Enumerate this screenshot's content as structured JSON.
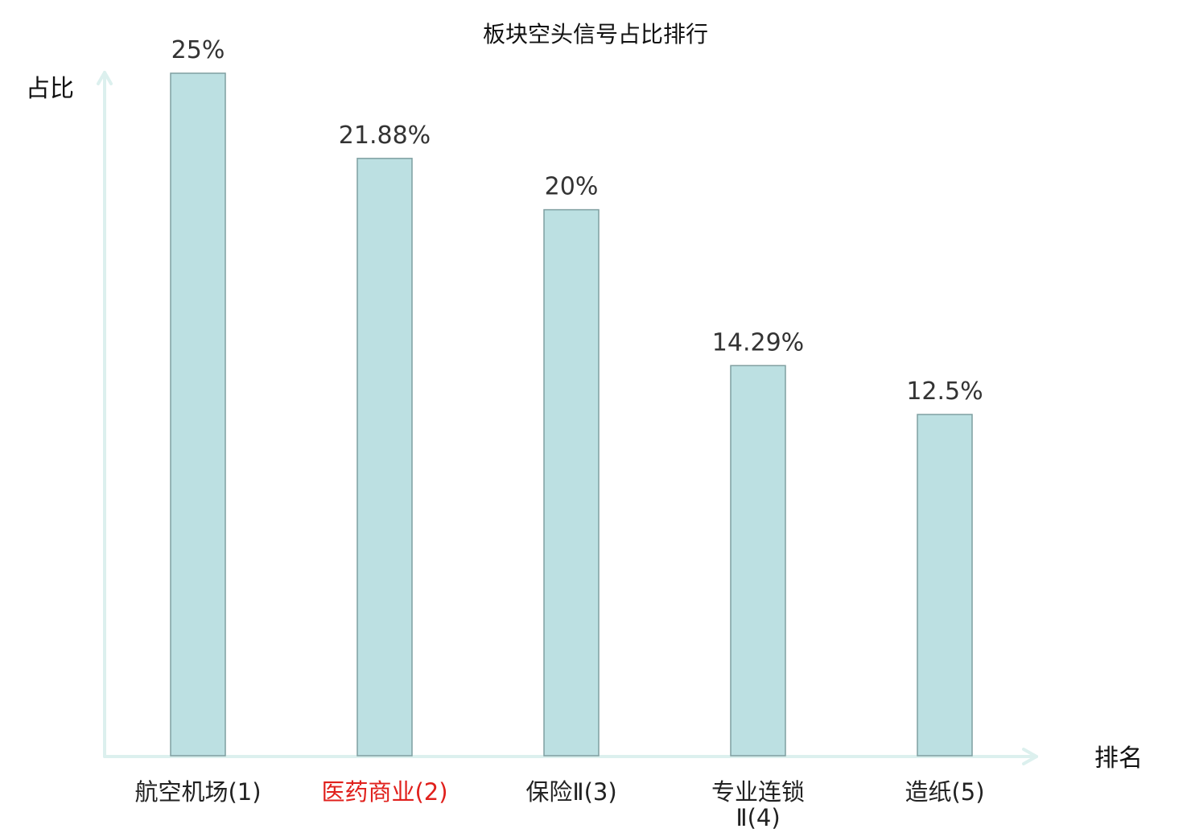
{
  "chart_data": {
    "type": "bar",
    "title": "板块空头信号占比排行",
    "xlabel": "排名",
    "ylabel": "占比",
    "categories": [
      [
        "航空机场(1)"
      ],
      [
        "医药商业(2)"
      ],
      [
        "保险Ⅱ(3)"
      ],
      [
        "专业连锁",
        "Ⅱ(4)"
      ],
      [
        "造纸(5)"
      ]
    ],
    "values": [
      25,
      21.88,
      20,
      14.29,
      12.5
    ],
    "value_labels": [
      "25%",
      "21.88%",
      "20%",
      "14.29%",
      "12.5%"
    ],
    "ylim": [
      0,
      25
    ],
    "highlighted_category_index": 1,
    "grid": false,
    "colors": {
      "bar_fill": "#bce0e2",
      "bar_stroke": "#7f9fa1",
      "axis": "#dcf0ee",
      "highlight_text": "#e0201c"
    }
  }
}
